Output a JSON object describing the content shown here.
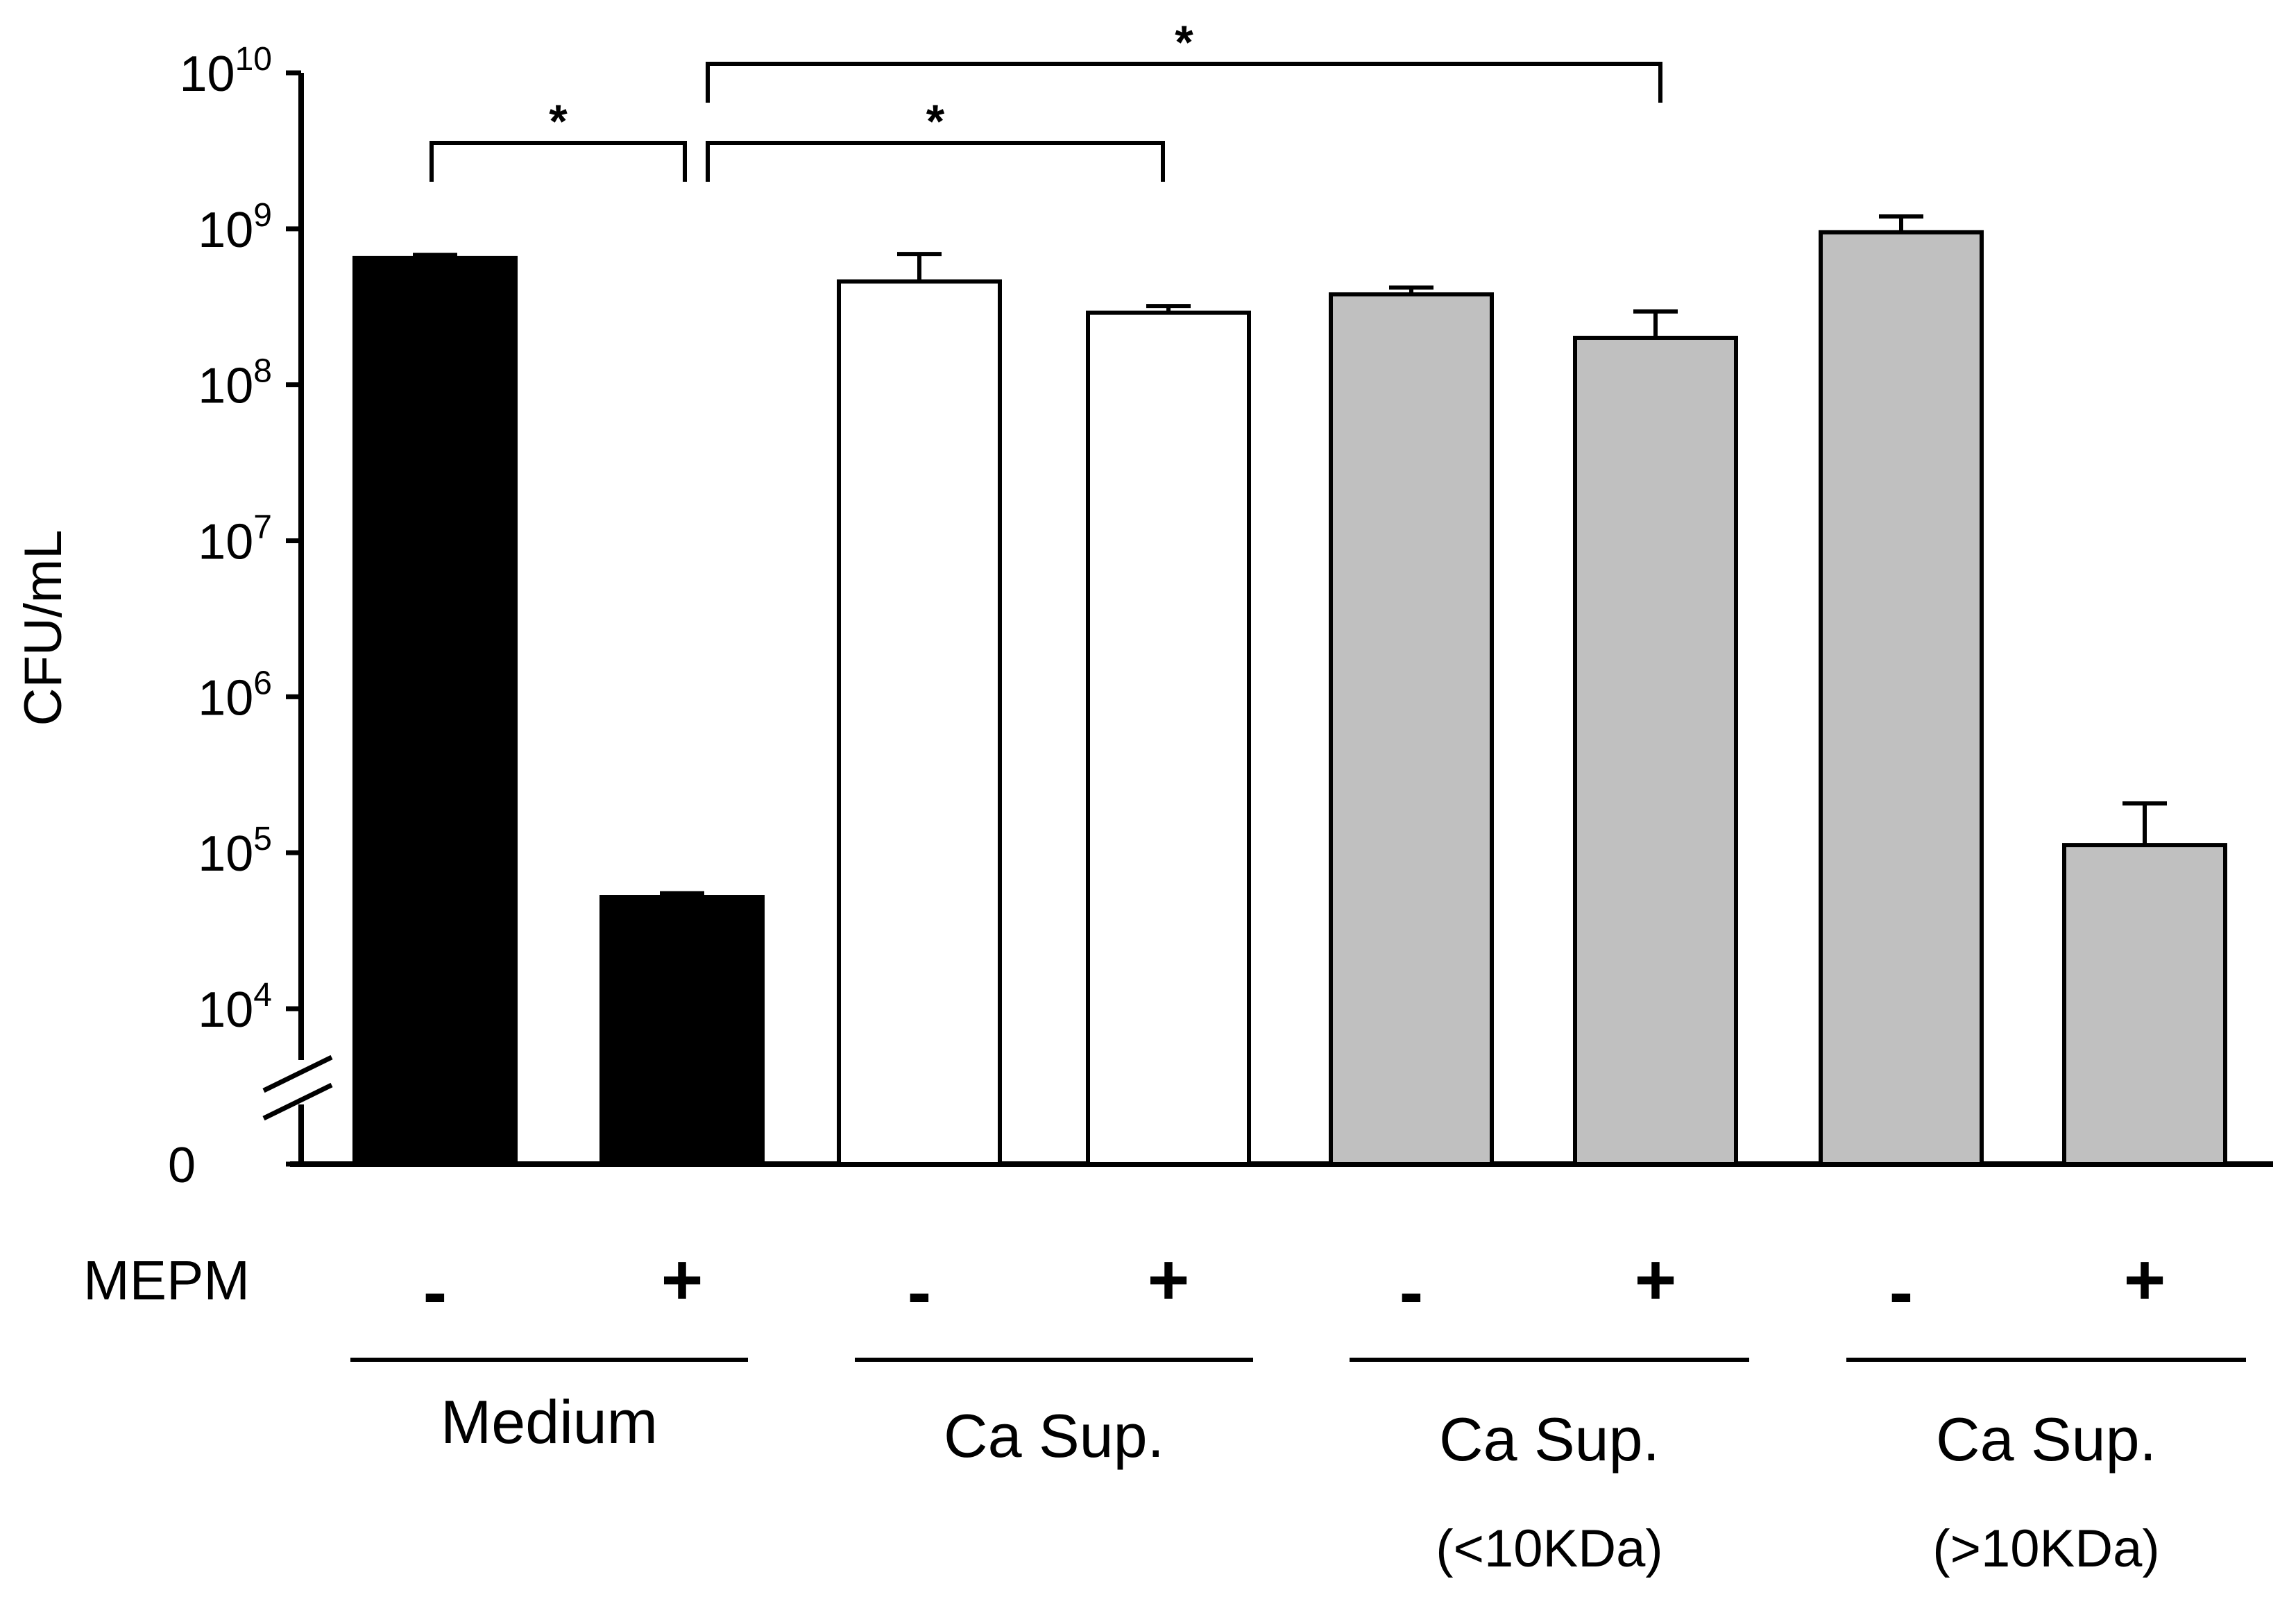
{
  "chart_data": {
    "type": "bar",
    "yscale": "log",
    "ylabel": "CFU/mL",
    "ylim": [
      10000,
      10000000000
    ],
    "yticks": [
      {
        "base": "10",
        "exp": "10",
        "value": 10000000000
      },
      {
        "base": "10",
        "exp": "9",
        "value": 1000000000
      },
      {
        "base": "10",
        "exp": "8",
        "value": 100000000
      },
      {
        "base": "10",
        "exp": "7",
        "value": 10000000
      },
      {
        "base": "10",
        "exp": "6",
        "value": 1000000
      },
      {
        "base": "10",
        "exp": "5",
        "value": 100000
      },
      {
        "base": "10",
        "exp": "4",
        "value": 10000
      }
    ],
    "zero_label": "0",
    "axis_break": true,
    "treatment_label": "MEPM",
    "bars": [
      {
        "group": 0,
        "mepm": "-",
        "value": 650000000,
        "error": 30000000,
        "color": "#000000"
      },
      {
        "group": 0,
        "mepm": "+",
        "value": 52000,
        "error": 3000,
        "color": "#000000"
      },
      {
        "group": 1,
        "mepm": "-",
        "value": 460000000,
        "error": 230000000,
        "color": "#ffffff"
      },
      {
        "group": 1,
        "mepm": "+",
        "value": 290000000,
        "error": 30000000,
        "color": "#ffffff"
      },
      {
        "group": 2,
        "mepm": "-",
        "value": 380000000,
        "error": 40000000,
        "color": "#c0c0c0"
      },
      {
        "group": 2,
        "mepm": "+",
        "value": 200000000,
        "error": 95000000,
        "color": "#c0c0c0"
      },
      {
        "group": 3,
        "mepm": "-",
        "value": 950000000,
        "error": 250000000,
        "color": "#c0c0c0"
      },
      {
        "group": 3,
        "mepm": "+",
        "value": 112000,
        "error": 95000,
        "color": "#c0c0c0"
      }
    ],
    "groups": [
      {
        "label": "Medium",
        "sublabel": ""
      },
      {
        "label": "Ca Sup.",
        "sublabel": ""
      },
      {
        "label": "Ca Sup.",
        "sublabel": "(<10KDa)"
      },
      {
        "label": "Ca Sup.",
        "sublabel": "(>10KDa)"
      }
    ],
    "significance": [
      {
        "from_bar": 0,
        "to_bar": 1,
        "value": 3000000000,
        "label": "*"
      },
      {
        "from_bar": 1,
        "to_bar": 3,
        "value": 3000000000,
        "label": "*"
      },
      {
        "from_bar": 1,
        "to_bar": 5,
        "value": 10000000000,
        "label": "*"
      }
    ]
  }
}
